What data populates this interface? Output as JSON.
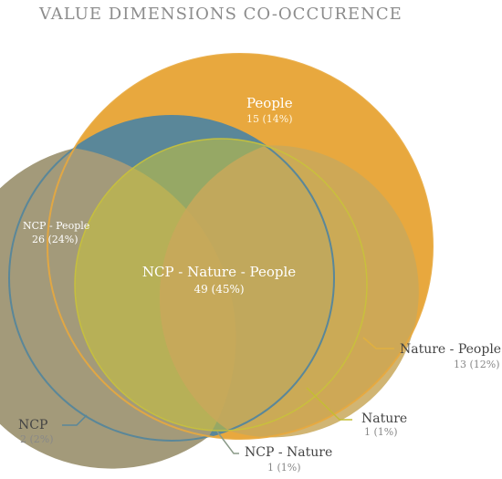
{
  "title": "VALUE DIMENSIONS CO-OCCURENCE",
  "colors": {
    "people": "#E8A83E",
    "ncp": "#5A8799",
    "nature": "#C9C23A",
    "ncp_people": "#A39A7A",
    "triple": "#C9A85A",
    "leader_people_nature": "#E0B040",
    "leader_nature": "#C4BD34",
    "leader_ncp_nature": "#8A9A88",
    "leader_ncp": "#5A8799"
  },
  "chart_data": {
    "type": "venn",
    "sets": [
      "People",
      "NCP",
      "Nature"
    ],
    "regions": [
      {
        "id": "people",
        "name": "People",
        "value": "15 (14%)",
        "count": 15,
        "percent": 14
      },
      {
        "id": "ncp_people",
        "name": "NCP - People",
        "value": "26 (24%)",
        "count": 26,
        "percent": 24
      },
      {
        "id": "triple",
        "name": "NCP - Nature - People",
        "value": "49 (45%)",
        "count": 49,
        "percent": 45
      },
      {
        "id": "nature_people",
        "name": "Nature - People",
        "value": "13 (12%)",
        "count": 13,
        "percent": 12
      },
      {
        "id": "nature",
        "name": "Nature",
        "value": "1 (1%)",
        "count": 1,
        "percent": 1
      },
      {
        "id": "ncp_nature",
        "name": "NCP - Nature",
        "value": "1 (1%)",
        "count": 1,
        "percent": 1
      },
      {
        "id": "ncp",
        "name": "NCP",
        "value": "2 (2%)",
        "count": 2,
        "percent": 2
      }
    ]
  }
}
